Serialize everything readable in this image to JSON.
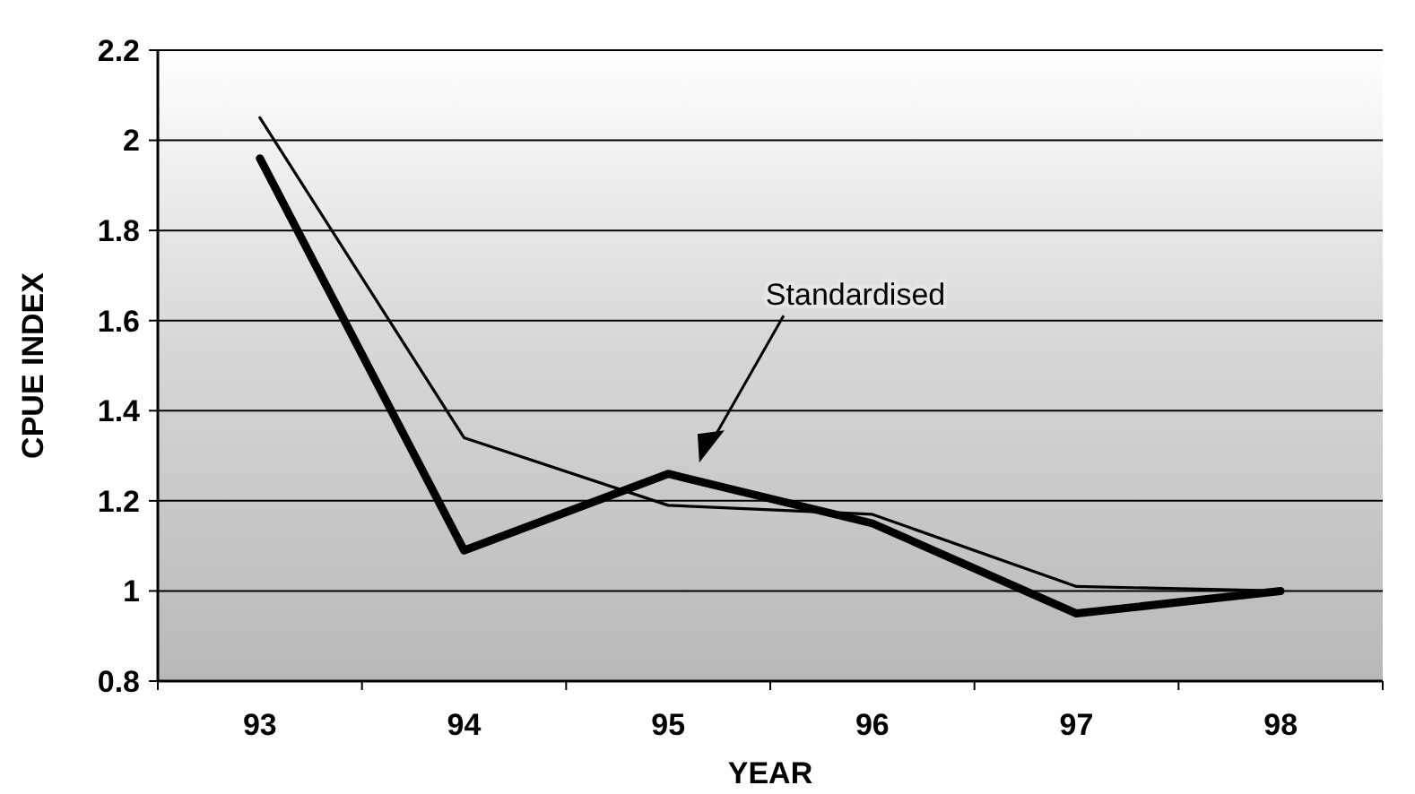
{
  "chart_data": {
    "type": "line",
    "xlabel": "YEAR",
    "ylabel": "CPUE INDEX",
    "categories": [
      "93",
      "94",
      "95",
      "96",
      "97",
      "98"
    ],
    "series": [
      {
        "color": "#000000",
        "values": [
          2.05,
          1.34,
          1.19,
          1.17,
          1.01,
          1.0
        ],
        "line_style": "solid"
      },
      {
        "color": "#000000",
        "values": [
          1.96,
          1.09,
          1.26,
          1.15,
          0.95,
          1.0
        ],
        "line_style": "solid"
      }
    ],
    "annotations": [
      "Standardised"
    ],
    "ylim": [
      0.8,
      2.2
    ],
    "yticks": [
      0.8,
      1,
      1.2,
      1.4,
      1.6,
      1.8,
      2,
      2.2
    ],
    "grid": "y",
    "marker": "none"
  }
}
